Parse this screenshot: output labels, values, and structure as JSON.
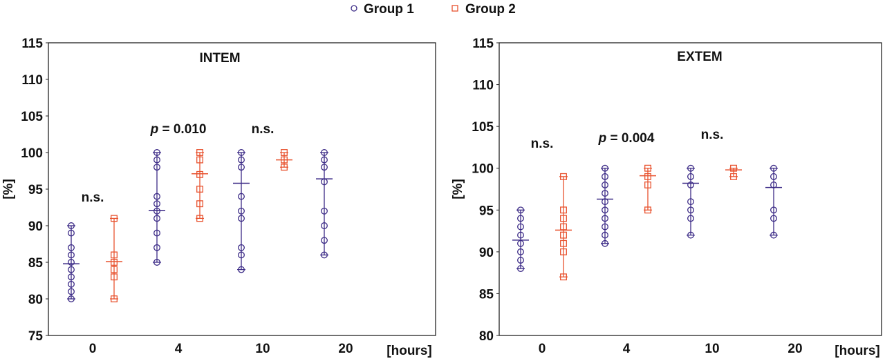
{
  "legend": {
    "items": [
      {
        "label": "Group 1",
        "marker": "circle",
        "color": "#3b2a86"
      },
      {
        "label": "Group 2",
        "marker": "square",
        "color": "#e8522e"
      }
    ],
    "placement": "top-center"
  },
  "chart_data": [
    {
      "type": "scatter",
      "title": "INTEM",
      "ylabel": "[%]",
      "xlabel": "[hours]",
      "categories": [
        "0",
        "4",
        "10",
        "20"
      ],
      "ylim": [
        75,
        115
      ],
      "yticks": [
        75,
        80,
        85,
        90,
        95,
        100,
        105,
        110,
        115
      ],
      "grid": false,
      "series": [
        {
          "name": "Group 1",
          "color": "#3b2a86",
          "marker": "circle",
          "points": [
            [
              80,
              81,
              82,
              83,
              84,
              85,
              86,
              87,
              89,
              90
            ],
            [
              85,
              87,
              89,
              91,
              92,
              93,
              94,
              98,
              99,
              100
            ],
            [
              84,
              86,
              87,
              91,
              92,
              94,
              98,
              99,
              100
            ],
            [
              86,
              88,
              90,
              92,
              96,
              98,
              99,
              100
            ]
          ],
          "means": [
            84.8,
            92.1,
            95.8,
            96.4
          ]
        },
        {
          "name": "Group 2",
          "color": "#e8522e",
          "marker": "square",
          "points": [
            [
              80,
              83,
              84,
              85,
              86,
              91
            ],
            [
              91,
              93,
              95,
              97,
              99,
              100
            ],
            [
              98,
              99,
              100
            ],
            []
          ],
          "means": [
            85.1,
            97.1,
            99.0,
            null
          ]
        }
      ],
      "annotations": [
        {
          "category": "0",
          "text": "n.s."
        },
        {
          "category": "4",
          "text_italic": "p",
          "text": " = 0.010"
        },
        {
          "category": "10",
          "text": "n.s."
        }
      ]
    },
    {
      "type": "scatter",
      "title": "EXTEM",
      "ylabel": "[%]",
      "xlabel": "[hours]",
      "categories": [
        "0",
        "4",
        "10",
        "20"
      ],
      "ylim": [
        80,
        115
      ],
      "yticks": [
        80,
        85,
        90,
        95,
        100,
        105,
        110,
        115
      ],
      "grid": false,
      "series": [
        {
          "name": "Group 1",
          "color": "#3b2a86",
          "marker": "circle",
          "points": [
            [
              88,
              89,
              90,
              91,
              92,
              93,
              94,
              95
            ],
            [
              91,
              92,
              93,
              94,
              95,
              96,
              97,
              98,
              99,
              100
            ],
            [
              92,
              94,
              95,
              96,
              98,
              99,
              100
            ],
            [
              92,
              94,
              95,
              98,
              99,
              100
            ]
          ],
          "means": [
            91.4,
            96.3,
            98.2,
            97.7
          ]
        },
        {
          "name": "Group 2",
          "color": "#e8522e",
          "marker": "square",
          "points": [
            [
              87,
              90,
              91,
              92,
              93,
              94,
              95,
              99
            ],
            [
              95,
              98,
              99,
              100
            ],
            [
              99,
              100
            ],
            []
          ],
          "means": [
            92.6,
            99.1,
            99.8,
            null
          ]
        }
      ],
      "annotations": [
        {
          "category": "0",
          "text": "n.s."
        },
        {
          "category": "4",
          "text_italic": "p",
          "text": " = 0.004"
        },
        {
          "category": "10",
          "text": "n.s."
        }
      ]
    }
  ]
}
